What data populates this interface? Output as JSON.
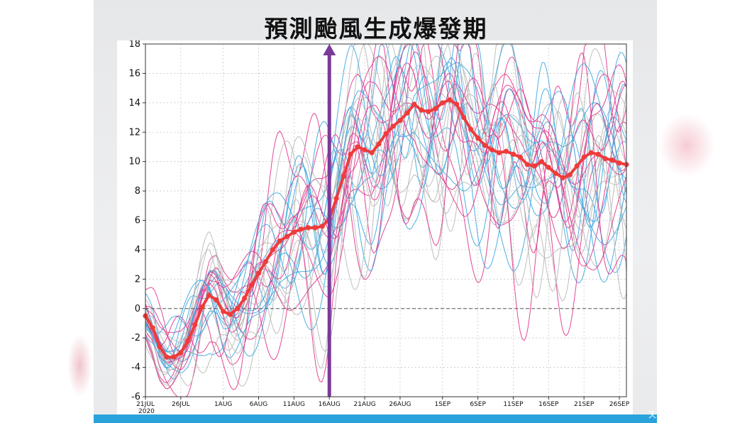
{
  "title": "預測颱風生成爆發期",
  "brand": "天",
  "chart_data": {
    "type": "line",
    "title": "預測颱風生成爆發期",
    "year_label": "2020",
    "x_tick_labels": [
      "21JUL",
      "26JUL",
      "1AUG",
      "6AUG",
      "11AUG",
      "16AUG",
      "21AUG",
      "26AUG",
      "1SEP",
      "6SEP",
      "11SEP",
      "16SEP",
      "21SEP",
      "26SEP"
    ],
    "x_range_days": [
      0,
      68
    ],
    "x_tick_days": [
      0,
      5,
      11,
      16,
      21,
      26,
      31,
      36,
      42,
      47,
      52,
      57,
      62,
      67
    ],
    "ylim": [
      -6,
      18
    ],
    "y_ticks": [
      -6,
      -4,
      -2,
      0,
      2,
      4,
      6,
      8,
      10,
      12,
      14,
      16,
      18
    ],
    "marker_date": "16AUG",
    "marker_day": 26,
    "colors": {
      "mean": "#ef3b3b",
      "marker": "#7a3a9a",
      "members": [
        "#3aa6e0",
        "#e0348a",
        "#b8b8b8"
      ]
    },
    "ensemble_mean": {
      "x_days": [
        0,
        1,
        2,
        3,
        4,
        5,
        6,
        7,
        8,
        9,
        10,
        11,
        12,
        13,
        14,
        15,
        16,
        17,
        18,
        19,
        20,
        21,
        22,
        23,
        24,
        25,
        26,
        27,
        28,
        29,
        30,
        31,
        32,
        33,
        34,
        35,
        36,
        37,
        38,
        39,
        40,
        41,
        42,
        43,
        44,
        45,
        46,
        47,
        48,
        49,
        50,
        51,
        52,
        53,
        54,
        55,
        56,
        57,
        58,
        59,
        60,
        61,
        62,
        63,
        64,
        65,
        66,
        67,
        68
      ],
      "values": [
        -0.5,
        -1.3,
        -2.6,
        -3.3,
        -3.3,
        -3.0,
        -2.2,
        -1.1,
        0.1,
        0.9,
        0.6,
        -0.2,
        -0.4,
        0.0,
        0.7,
        1.6,
        2.4,
        3.2,
        4.0,
        4.6,
        4.9,
        5.2,
        5.4,
        5.5,
        5.5,
        5.6,
        6.1,
        7.5,
        9.0,
        10.5,
        11.0,
        10.8,
        10.6,
        11.2,
        11.9,
        12.4,
        12.8,
        13.3,
        13.9,
        13.5,
        13.4,
        13.6,
        14.0,
        14.2,
        13.9,
        13.0,
        12.2,
        11.6,
        11.1,
        10.8,
        10.6,
        10.7,
        10.5,
        10.3,
        9.8,
        9.7,
        10.0,
        9.6,
        9.2,
        8.9,
        9.1,
        9.7,
        10.3,
        10.6,
        10.5,
        10.2,
        10.1,
        9.9,
        9.8
      ]
    }
  }
}
